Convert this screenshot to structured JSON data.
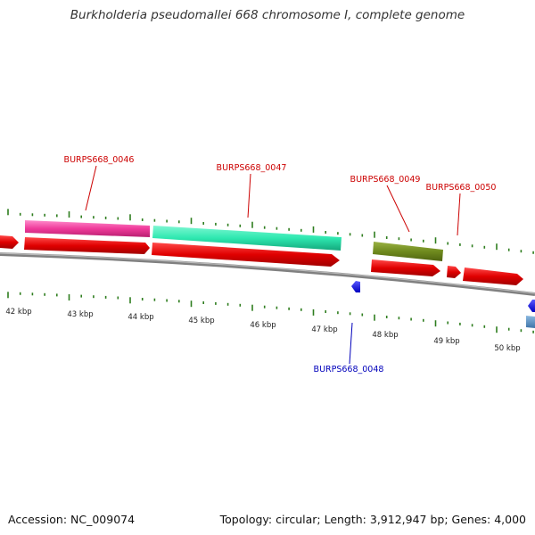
{
  "title": "Burkholderia pseudomallei 668 chromosome I, complete genome",
  "footer": {
    "accession": "Accession: NC_009074",
    "summary": "Topology: circular; Length: 3,912,947 bp; Genes: 4,000"
  },
  "scale": {
    "labels": [
      "42 kbp",
      "43 kbp",
      "44 kbp",
      "45 kbp",
      "46 kbp",
      "47 kbp",
      "48 kbp",
      "49 kbp",
      "50 kbp"
    ]
  },
  "colors": {
    "gene_forward": "#e00000",
    "gene_label_red": "#cc0000",
    "gene_label_blue": "#0000bb",
    "gene_reverse": "#0000ee",
    "tick": "#2e7d1e",
    "backbone": "#808080",
    "cog_magenta": "#ef3a9a",
    "cog_teal": "#2ee8b0",
    "cog_olive": "#6f8a1e",
    "cog_steel": "#5a8fc0"
  },
  "genes": [
    {
      "name": "BURPS668_0046",
      "strand": "+",
      "color_key": "gene_label_red"
    },
    {
      "name": "BURPS668_0047",
      "strand": "+",
      "color_key": "gene_label_red"
    },
    {
      "name": "BURPS668_0048",
      "strand": "-",
      "color_key": "gene_label_blue"
    },
    {
      "name": "BURPS668_0049",
      "strand": "+",
      "color_key": "gene_label_red"
    },
    {
      "name": "BURPS668_0050",
      "strand": "+",
      "color_key": "gene_label_red"
    }
  ]
}
